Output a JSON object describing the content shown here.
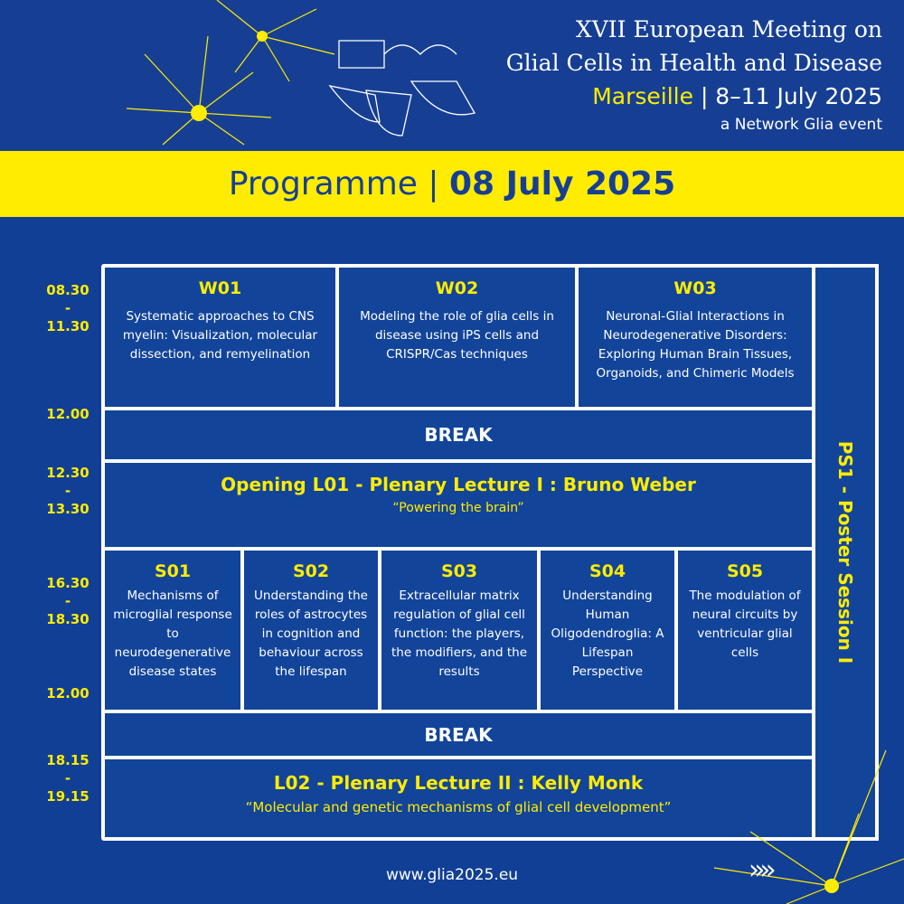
{
  "header": {
    "line1": "XVII European Meeting on",
    "line2": "Glial Cells in Health and Disease",
    "city": "Marseille",
    "dates": "| 8–11 July 2025",
    "tagline": "a Network Glia event"
  },
  "banner": {
    "label": "Programme |",
    "date": "08 July 2025"
  },
  "times": [
    "08.30",
    "-",
    "11.30",
    "12.00",
    "12.30",
    "-",
    "13.30",
    "16.30",
    "-",
    "18.30",
    "12.00",
    "18.15",
    "-",
    "19.15"
  ],
  "workshops": [
    {
      "code": "W01",
      "title": "Systematic approaches to CNS myelin: Visualization, molecular dissection, and remyelination"
    },
    {
      "code": "W02",
      "title": "Modeling the role of glia cells in disease using iPS cells and CRISPR/Cas techniques"
    },
    {
      "code": "W03",
      "title": "Neuronal-Glial Interactions in Neurodegenerative Disorders: Exploring Human Brain Tissues, Organoids, and Chimeric Models"
    }
  ],
  "break1": "BREAK",
  "opening": {
    "title": "Opening L01 - Plenary Lecture I : Bruno Weber",
    "quote": "“Powering the brain”"
  },
  "symposia": [
    {
      "code": "S01",
      "title": "Mechanisms of microglial response to neurodegenerative disease states"
    },
    {
      "code": "S02",
      "title": "Understanding the roles of astrocytes in cognition and behaviour across the lifespan"
    },
    {
      "code": "S03",
      "title": "Extracellular matrix regulation of glial cell function: the players, the modifiers, and the results"
    },
    {
      "code": "S04",
      "title": "Understanding Human Oligodendroglia: A Lifespan Perspective"
    },
    {
      "code": "S05",
      "title": "The modulation of neural circuits by ventricular glial cells"
    }
  ],
  "break2": "BREAK",
  "lecture2": {
    "title": "L02 - Plenary Lecture II : Kelly Monk",
    "quote": "“Molecular and genetic mechanisms of glial cell development”"
  },
  "poster": "PS1 - Poster Session I",
  "footer": {
    "url": "www.glia2025.eu",
    "next": "»»"
  },
  "colors": {
    "background": "#113f95",
    "accent": "#ffec00",
    "cell": "#12449a"
  }
}
